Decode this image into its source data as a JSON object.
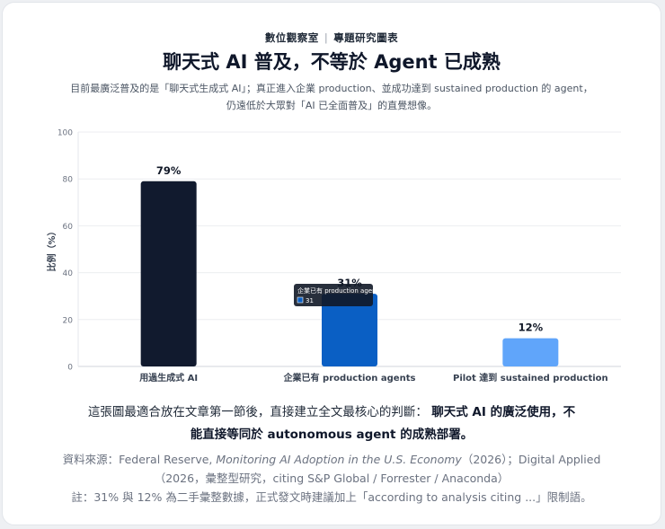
{
  "header": {
    "kicker_left": "數位觀察室",
    "kicker_sep": "|",
    "kicker_right": "專題研究圖表",
    "title": "聊天式 AI 普及，不等於 Agent 已成熟",
    "subtitle_line1": "目前最廣泛普及的是「聊天式生成式 AI」；真正進入企業 production、並成功達到 sustained production 的 agent，",
    "subtitle_line2": "仍遠低於大眾對「AI 已全面普及」的直覺想像。"
  },
  "chart_data": {
    "type": "bar",
    "ylabel": "比例（%）",
    "ylim": [
      0,
      100
    ],
    "yticks": [
      0,
      20,
      40,
      60,
      80,
      100
    ],
    "grid": true,
    "categories": [
      "用過生成式 AI",
      "企業已有 production agents",
      "Pilot 達到 sustained production"
    ],
    "values": [
      79,
      31,
      12
    ],
    "data_labels": [
      "79%",
      "31%",
      "12%"
    ],
    "colors": [
      "#111a2e",
      "#0a5fc4",
      "#60a5fa"
    ],
    "tooltip": {
      "title": "企業已有 production agents",
      "value": "31",
      "category_index": 1,
      "swatch_color": "#0a5fc4"
    }
  },
  "footer": {
    "conclusion_plain": "這張圖最適合放在文章第一節後，直接建立全文最核心的判斷：",
    "conclusion_bold": "聊天式 AI 的廣泛使用，不能直接等同於 autonomous agent 的成熟部署。",
    "source_prefix": "資料來源：Federal Reserve,",
    "source_italic": "Monitoring AI Adoption in the U.S. Economy",
    "source_rest": "（2026）；Digital Applied（2026，彙整型研究，citing S&P Global / Forrester / Anaconda）",
    "note": "註：31% 與 12% 為二手彙整數據，正式發文時建議加上「according to analysis citing ...」限制語。"
  }
}
